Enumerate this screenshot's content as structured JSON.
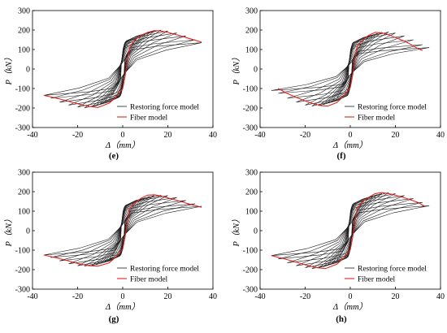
{
  "legend": {
    "restoring": "Restoring force model",
    "fiber": "Fiber model"
  },
  "colors": {
    "restoring": "#1a1a1a",
    "fiber": "#e8231f"
  },
  "chart_data": [
    {
      "type": "line",
      "panel_label": "(e)",
      "xlabel": "Δ（mm）",
      "ylabel": "P（kN）",
      "xlim": [
        -40,
        40
      ],
      "ylim": [
        -300,
        300
      ],
      "xticks": [
        -40,
        -20,
        0,
        20,
        40
      ],
      "yticks": [
        -300,
        -200,
        -100,
        0,
        100,
        200,
        300
      ],
      "grid": false,
      "legend_position": "bottom-right",
      "restoring_force_model": {
        "max_disp": [
          5,
          6,
          8,
          10,
          12,
          14,
          17,
          20,
          24,
          28,
          32,
          35
        ],
        "peak_force": [
          135,
          150,
          165,
          178,
          188,
          195,
          200,
          195,
          185,
          170,
          150,
          135
        ]
      },
      "fiber_model_envelope": [
        [
          -35,
          -135
        ],
        [
          -30,
          -148
        ],
        [
          -25,
          -162
        ],
        [
          -20,
          -178
        ],
        [
          -15,
          -192
        ],
        [
          -11,
          -197
        ],
        [
          -6,
          -175
        ],
        [
          -3,
          -145
        ],
        [
          0,
          -100
        ],
        [
          1,
          -40
        ],
        [
          2,
          40
        ],
        [
          3,
          110
        ],
        [
          5,
          145
        ],
        [
          8,
          172
        ],
        [
          11,
          188
        ],
        [
          14,
          197
        ],
        [
          17,
          195
        ],
        [
          20,
          188
        ],
        [
          25,
          172
        ],
        [
          30,
          155
        ],
        [
          35,
          138
        ]
      ]
    },
    {
      "type": "line",
      "panel_label": "(f)",
      "xlabel": "Δ（mm）",
      "ylabel": "P（kN）",
      "xlim": [
        -40,
        40
      ],
      "ylim": [
        -300,
        300
      ],
      "xticks": [
        -40,
        -20,
        0,
        20,
        40
      ],
      "yticks": [
        -300,
        -200,
        -100,
        0,
        100,
        200,
        300
      ],
      "grid": false,
      "legend_position": "bottom-right",
      "restoring_force_model": {
        "max_disp": [
          5,
          6,
          8,
          10,
          12,
          14,
          17,
          20,
          24,
          28,
          32,
          35
        ],
        "peak_force": [
          130,
          145,
          160,
          172,
          182,
          188,
          190,
          185,
          170,
          150,
          125,
          110
        ]
      },
      "fiber_model_envelope": [
        [
          -32,
          -100
        ],
        [
          -28,
          -125
        ],
        [
          -23,
          -150
        ],
        [
          -18,
          -172
        ],
        [
          -13,
          -188
        ],
        [
          -10,
          -190
        ],
        [
          -6,
          -172
        ],
        [
          -3,
          -140
        ],
        [
          0,
          -95
        ],
        [
          1,
          -35
        ],
        [
          2,
          45
        ],
        [
          3,
          112
        ],
        [
          5,
          145
        ],
        [
          8,
          172
        ],
        [
          11,
          188
        ],
        [
          14,
          186
        ],
        [
          17,
          176
        ],
        [
          20,
          162
        ],
        [
          25,
          138
        ],
        [
          30,
          105
        ],
        [
          32,
          95
        ]
      ]
    },
    {
      "type": "line",
      "panel_label": "(g)",
      "xlabel": "Δ（mm）",
      "ylabel": "P（kN）",
      "xlim": [
        -40,
        40
      ],
      "ylim": [
        -300,
        300
      ],
      "xticks": [
        -40,
        -20,
        0,
        20,
        40
      ],
      "yticks": [
        -300,
        -200,
        -100,
        0,
        100,
        200,
        300
      ],
      "grid": false,
      "legend_position": "bottom-right",
      "restoring_force_model": {
        "max_disp": [
          5,
          6,
          8,
          10,
          12,
          14,
          17,
          20,
          24,
          28,
          32,
          35
        ],
        "peak_force": [
          130,
          145,
          158,
          168,
          175,
          180,
          182,
          180,
          170,
          155,
          138,
          125
        ]
      },
      "fiber_model_envelope": [
        [
          -35,
          -125
        ],
        [
          -30,
          -138
        ],
        [
          -25,
          -152
        ],
        [
          -20,
          -168
        ],
        [
          -15,
          -180
        ],
        [
          -11,
          -182
        ],
        [
          -6,
          -165
        ],
        [
          -3,
          -135
        ],
        [
          0,
          -95
        ],
        [
          1,
          -35
        ],
        [
          2,
          45
        ],
        [
          3,
          110
        ],
        [
          5,
          140
        ],
        [
          8,
          165
        ],
        [
          11,
          182
        ],
        [
          14,
          184
        ],
        [
          17,
          178
        ],
        [
          20,
          168
        ],
        [
          25,
          152
        ],
        [
          30,
          135
        ],
        [
          35,
          120
        ]
      ]
    },
    {
      "type": "line",
      "panel_label": "(h)",
      "xlabel": "Δ（mm）",
      "ylabel": "P（kN）",
      "xlim": [
        -40,
        40
      ],
      "ylim": [
        -300,
        300
      ],
      "xticks": [
        -40,
        -20,
        0,
        20,
        40
      ],
      "yticks": [
        -300,
        -200,
        -100,
        0,
        100,
        200,
        300
      ],
      "grid": false,
      "legend_position": "bottom-right",
      "restoring_force_model": {
        "max_disp": [
          5,
          6,
          8,
          10,
          12,
          14,
          17,
          20,
          24,
          28,
          32,
          35
        ],
        "peak_force": [
          135,
          150,
          165,
          175,
          185,
          190,
          195,
          190,
          180,
          165,
          145,
          128
        ]
      },
      "fiber_model_envelope": [
        [
          -35,
          -128
        ],
        [
          -30,
          -142
        ],
        [
          -25,
          -158
        ],
        [
          -20,
          -175
        ],
        [
          -15,
          -190
        ],
        [
          -11,
          -194
        ],
        [
          -6,
          -172
        ],
        [
          -3,
          -142
        ],
        [
          0,
          -98
        ],
        [
          1,
          -38
        ],
        [
          2,
          42
        ],
        [
          3,
          110
        ],
        [
          5,
          145
        ],
        [
          8,
          170
        ],
        [
          11,
          190
        ],
        [
          14,
          195
        ],
        [
          17,
          190
        ],
        [
          20,
          182
        ],
        [
          25,
          165
        ],
        [
          30,
          145
        ],
        [
          33,
          125
        ]
      ]
    }
  ]
}
